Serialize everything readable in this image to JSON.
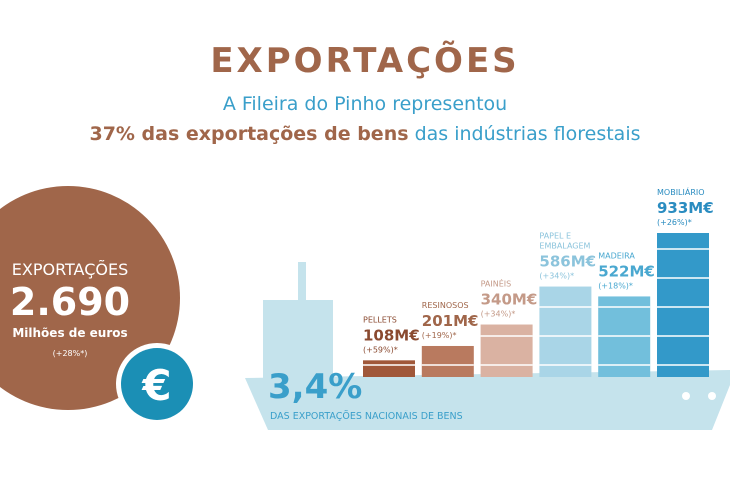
{
  "header": {
    "title": "EXPORTAÇÕES",
    "line1": "A Fileira do Pinho representou",
    "line2_strong": "37% das exportações de bens",
    "line2_rest": " das indústrias florestais"
  },
  "total": {
    "label": "EXPORTAÇÕES",
    "value": "2.690",
    "unit": "Milhões de euros",
    "change": "(+28%*)",
    "icon": "€"
  },
  "share": {
    "value": "3,4%",
    "label": "DAS EXPORTAÇÕES NACIONAIS DE BENS"
  },
  "chart_data": {
    "type": "bar",
    "categories": [
      "PELLETS",
      "RESINOSOS",
      "PAINÉIS",
      "PAPEL E EMBALAGEM",
      "MADEIRA",
      "MOBILIÁRIO"
    ],
    "values": [
      108,
      201,
      340,
      586,
      522,
      933
    ],
    "value_labels": [
      "108M€",
      "201M€",
      "340M€",
      "586M€",
      "522M€",
      "933M€"
    ],
    "changes": [
      "(+59%)*",
      "(+19%)*",
      "(+34%)*",
      "(+34%)*",
      "(+18%)*",
      "(+26%)*"
    ],
    "colors": [
      "#a0583a",
      "#b97a5f",
      "#dab2a2",
      "#a9d5e7",
      "#72bfdc",
      "#3399c9"
    ],
    "label_colors": [
      "#8a4a30",
      "#a0664a",
      "#c49a88",
      "#8cc4dc",
      "#4aa8d0",
      "#2a8cc0"
    ]
  }
}
